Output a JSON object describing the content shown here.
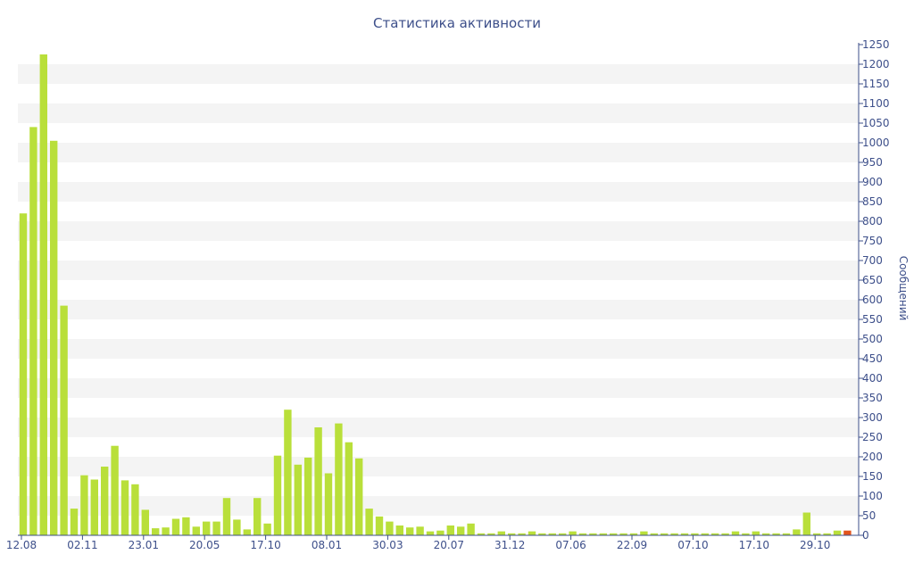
{
  "chart_data": {
    "type": "bar",
    "title": "Статистика активности",
    "ylabel": "Сообщений",
    "ylim": [
      0,
      1250
    ],
    "y_ticks": [
      0,
      50,
      100,
      150,
      200,
      250,
      300,
      350,
      400,
      450,
      500,
      550,
      600,
      650,
      700,
      750,
      800,
      850,
      900,
      950,
      1000,
      1050,
      1100,
      1150,
      1200,
      1250
    ],
    "y_axis_position": "right",
    "grid": "alternating horizontal bands",
    "x_tick_labels": [
      "12.08",
      "02.11",
      "23.01",
      "20.05",
      "17.10",
      "08.01",
      "30.03",
      "20.07",
      "31.12",
      "07.06",
      "22.09",
      "07.10",
      "17.10",
      "29.10"
    ],
    "x_tick_bar_index": [
      0,
      6,
      12,
      18,
      24,
      30,
      36,
      42,
      48,
      54,
      60,
      66,
      72,
      78
    ],
    "values": [
      820,
      1040,
      1225,
      1005,
      585,
      68,
      153,
      142,
      175,
      228,
      140,
      130,
      65,
      18,
      20,
      42,
      46,
      22,
      35,
      35,
      95,
      40,
      15,
      95,
      30,
      203,
      320,
      180,
      198,
      275,
      158,
      285,
      237,
      196,
      68,
      48,
      35,
      25,
      20,
      22,
      10,
      12,
      25,
      22,
      30,
      5,
      5,
      10,
      5,
      5,
      10,
      5,
      5,
      5,
      10,
      5,
      5,
      5,
      5,
      5,
      5,
      10,
      5,
      5,
      5,
      5,
      5,
      5,
      5,
      5,
      10,
      5,
      10,
      5,
      5,
      5,
      15,
      58,
      5,
      5,
      12,
      12
    ],
    "bar_color": "#b9df3a",
    "highlight_color": "#e2541c",
    "highlight_index": 81
  }
}
